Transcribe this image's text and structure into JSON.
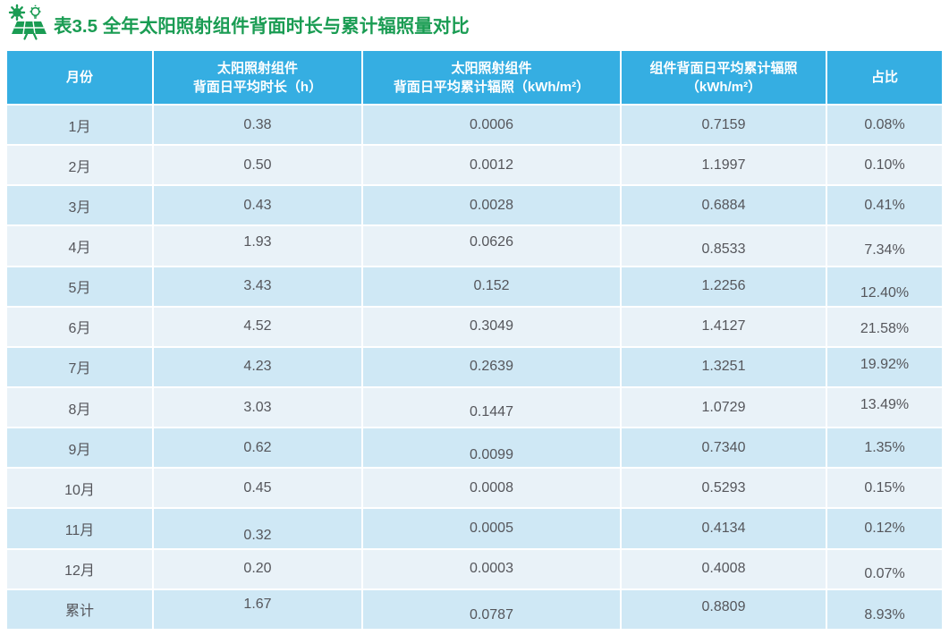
{
  "title": {
    "icon": "solar-panel-sun-bulb",
    "text": "表3.5 全年太阳照射组件背面时长与累计辐照量对比"
  },
  "colors": {
    "title_green": "#1A9C53",
    "header_bg": "#35AEE2",
    "header_text": "#FFFFFF",
    "row_odd_bg": "#CFE8F5",
    "row_even_bg": "#E9F2F8",
    "cell_text": "#55565B"
  },
  "chart_data": {
    "type": "table",
    "title": "表3.5 全年太阳照射组件背面时长与累计辐照量对比",
    "headers": [
      [
        "月份"
      ],
      [
        "太阳照射组件",
        "背面日平均时长（h）"
      ],
      [
        "太阳照射组件",
        "背面日平均累计辐照（kWh/m²）"
      ],
      [
        "组件背面日平均累计辐照",
        "（kWh/m²）"
      ],
      [
        "占比"
      ]
    ],
    "rows": [
      [
        "1月",
        "0.38",
        "0.0006",
        "0.7159",
        "0.08%"
      ],
      [
        "2月",
        "0.50",
        "0.0012",
        "1.1997",
        "0.10%"
      ],
      [
        "3月",
        "0.43",
        "0.0028",
        "0.6884",
        "0.41%"
      ],
      [
        "4月",
        "1.93",
        "0.0626",
        "0.8533",
        "7.34%"
      ],
      [
        "5月",
        "3.43",
        "0.152",
        "1.2256",
        "12.40%"
      ],
      [
        "6月",
        "4.52",
        "0.3049",
        "1.4127",
        "21.58%"
      ],
      [
        "7月",
        "4.23",
        "0.2639",
        "1.3251",
        "19.92%"
      ],
      [
        "8月",
        "3.03",
        "0.1447",
        "1.0729",
        "13.49%"
      ],
      [
        "9月",
        "0.62",
        "0.0099",
        "0.7340",
        "1.35%"
      ],
      [
        "10月",
        "0.45",
        "0.0008",
        "0.5293",
        "0.15%"
      ],
      [
        "11月",
        "0.32",
        "0.0005",
        "0.4134",
        "0.12%"
      ],
      [
        "12月",
        "0.20",
        "0.0003",
        "0.4008",
        "0.07%"
      ],
      [
        "累计",
        "1.67",
        "0.0787",
        "0.8809",
        "8.93%"
      ]
    ]
  }
}
